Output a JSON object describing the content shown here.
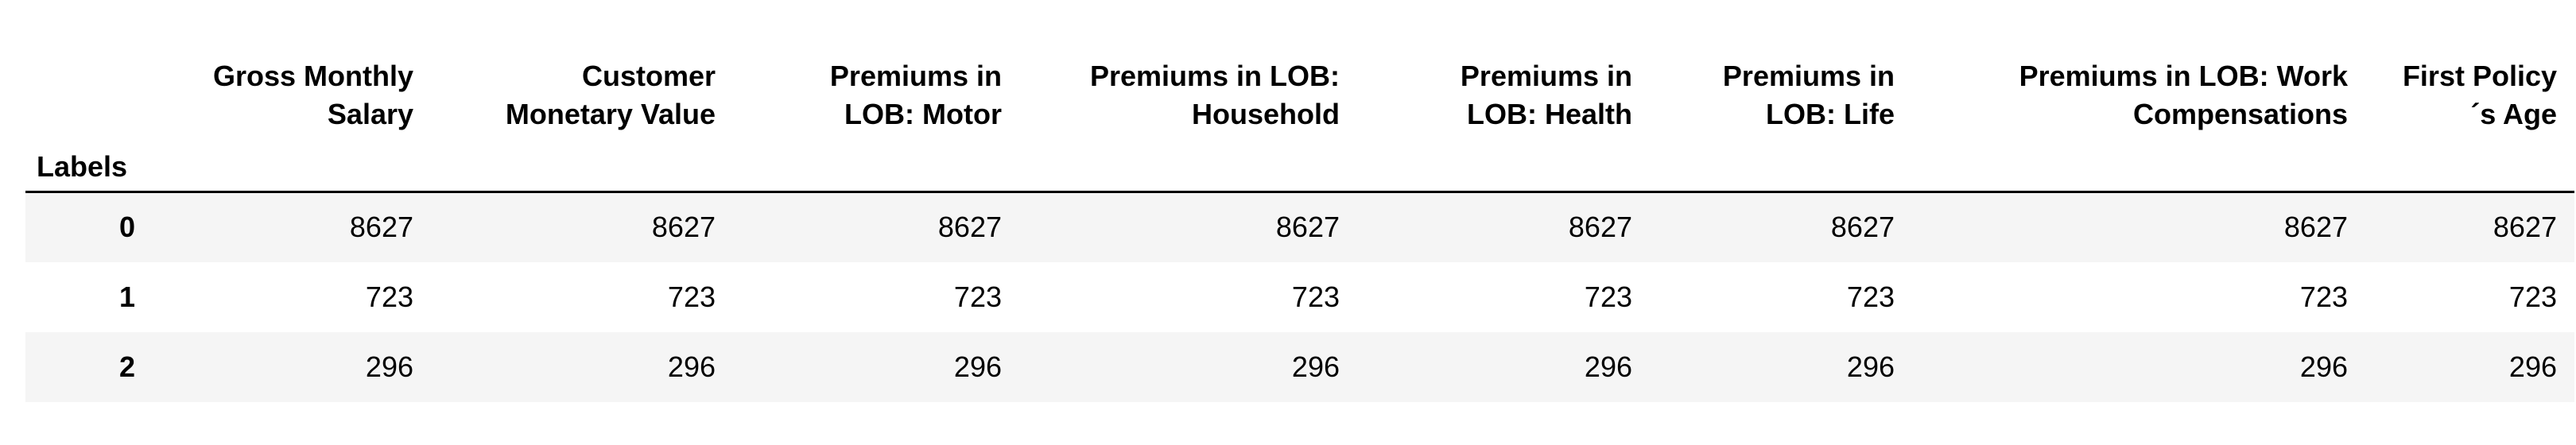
{
  "table": {
    "index_name": "Labels",
    "columns": [
      [
        "Gross Monthly",
        "Salary"
      ],
      [
        "Customer",
        "Monetary Value"
      ],
      [
        "Premiums in",
        "LOB: Motor"
      ],
      [
        "Premiums in LOB:",
        "Household"
      ],
      [
        "Premiums in",
        "LOB: Health"
      ],
      [
        "Premiums in",
        "LOB: Life"
      ],
      [
        "Premiums in LOB: Work",
        "Compensations"
      ],
      [
        "First Policy",
        "´s Age"
      ]
    ],
    "rows": [
      {
        "label": "0",
        "values": [
          "8627",
          "8627",
          "8627",
          "8627",
          "8627",
          "8627",
          "8627",
          "8627"
        ]
      },
      {
        "label": "1",
        "values": [
          "723",
          "723",
          "723",
          "723",
          "723",
          "723",
          "723",
          "723"
        ]
      },
      {
        "label": "2",
        "values": [
          "296",
          "296",
          "296",
          "296",
          "296",
          "296",
          "296",
          "296"
        ]
      }
    ]
  }
}
